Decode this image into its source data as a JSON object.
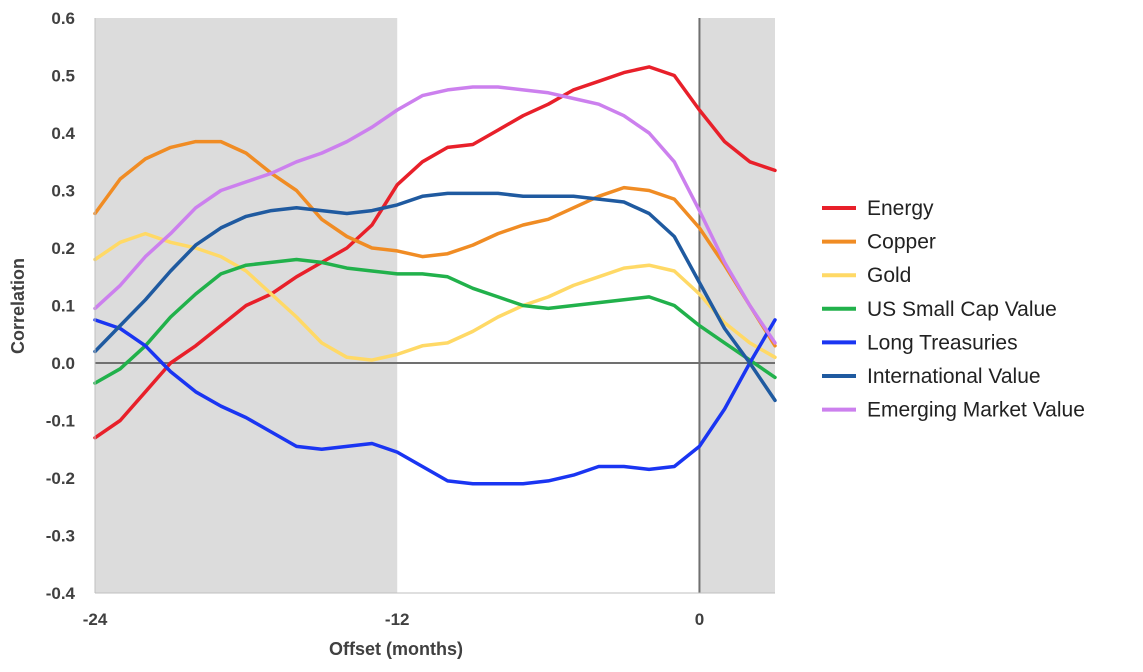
{
  "chart_data": {
    "type": "line",
    "title": "",
    "xlabel": "Offset (months)",
    "ylabel": "Correlation",
    "xlim": [
      -24,
      3
    ],
    "ylim": [
      -0.4,
      0.6
    ],
    "x_ticks": [
      {
        "value": -24,
        "label": "-24"
      },
      {
        "value": -12,
        "label": "-12"
      },
      {
        "value": 0,
        "label": "0"
      }
    ],
    "y_ticks": [
      {
        "value": 0.6,
        "label": "0.6"
      },
      {
        "value": 0.5,
        "label": "0.5"
      },
      {
        "value": 0.4,
        "label": "0.4"
      },
      {
        "value": 0.3,
        "label": "0.3"
      },
      {
        "value": 0.2,
        "label": "0.2"
      },
      {
        "value": 0.1,
        "label": "0.1"
      },
      {
        "value": 0.0,
        "label": "0.0"
      },
      {
        "value": -0.1,
        "label": "-0.1"
      },
      {
        "value": -0.2,
        "label": "-0.2"
      },
      {
        "value": -0.3,
        "label": "-0.3"
      },
      {
        "value": -0.4,
        "label": "-0.4"
      }
    ],
    "shaded_regions": [
      {
        "x_from": -24,
        "x_to": -12,
        "color": "#dcdcdc"
      },
      {
        "x_from": 0,
        "x_to": 3,
        "color": "#dcdcdc"
      }
    ],
    "reference_lines": {
      "horizontal_y": 0,
      "vertical_x": 0
    },
    "grid": false,
    "legend_position": "right",
    "x": [
      -24,
      -23,
      -22,
      -21,
      -20,
      -19,
      -18,
      -17,
      -16,
      -15,
      -14,
      -13,
      -12,
      -11,
      -10,
      -9,
      -8,
      -7,
      -6,
      -5,
      -4,
      -3,
      -2,
      -1,
      0,
      1,
      2,
      3
    ],
    "series": [
      {
        "name": "Energy",
        "color": "#e8202a",
        "values": [
          -0.13,
          -0.1,
          -0.05,
          0.0,
          0.03,
          0.065,
          0.1,
          0.12,
          0.15,
          0.175,
          0.2,
          0.24,
          0.31,
          0.35,
          0.375,
          0.38,
          0.405,
          0.43,
          0.45,
          0.475,
          0.49,
          0.505,
          0.515,
          0.5,
          0.44,
          0.385,
          0.35,
          0.335
        ]
      },
      {
        "name": "Copper",
        "color": "#f08c24",
        "values": [
          0.26,
          0.32,
          0.355,
          0.375,
          0.385,
          0.385,
          0.365,
          0.33,
          0.3,
          0.25,
          0.22,
          0.2,
          0.195,
          0.185,
          0.19,
          0.205,
          0.225,
          0.24,
          0.25,
          0.27,
          0.29,
          0.305,
          0.3,
          0.285,
          0.235,
          0.17,
          0.1,
          0.03
        ]
      },
      {
        "name": "Gold",
        "color": "#ffd966",
        "values": [
          0.18,
          0.21,
          0.225,
          0.21,
          0.2,
          0.185,
          0.16,
          0.12,
          0.08,
          0.035,
          0.01,
          0.005,
          0.015,
          0.03,
          0.035,
          0.055,
          0.08,
          0.1,
          0.115,
          0.135,
          0.15,
          0.165,
          0.17,
          0.16,
          0.12,
          0.07,
          0.035,
          0.01
        ]
      },
      {
        "name": "US Small Cap Value",
        "color": "#21b14b",
        "values": [
          -0.035,
          -0.01,
          0.03,
          0.08,
          0.12,
          0.155,
          0.17,
          0.175,
          0.18,
          0.175,
          0.165,
          0.16,
          0.155,
          0.155,
          0.15,
          0.13,
          0.115,
          0.1,
          0.095,
          0.1,
          0.105,
          0.11,
          0.115,
          0.1,
          0.065,
          0.035,
          0.005,
          -0.025
        ]
      },
      {
        "name": "Long Treasuries",
        "color": "#1a35f2",
        "values": [
          0.075,
          0.06,
          0.03,
          -0.015,
          -0.05,
          -0.075,
          -0.095,
          -0.12,
          -0.145,
          -0.15,
          -0.145,
          -0.14,
          -0.155,
          -0.18,
          -0.205,
          -0.21,
          -0.21,
          -0.21,
          -0.205,
          -0.195,
          -0.18,
          -0.18,
          -0.185,
          -0.18,
          -0.145,
          -0.08,
          0.0,
          0.075
        ]
      },
      {
        "name": "International Value",
        "color": "#1f5aa0",
        "values": [
          0.02,
          0.065,
          0.11,
          0.16,
          0.205,
          0.235,
          0.255,
          0.265,
          0.27,
          0.265,
          0.26,
          0.265,
          0.275,
          0.29,
          0.295,
          0.295,
          0.295,
          0.29,
          0.29,
          0.29,
          0.285,
          0.28,
          0.26,
          0.22,
          0.14,
          0.06,
          0.0,
          -0.065
        ]
      },
      {
        "name": "Emerging Market Value",
        "color": "#cc80ee",
        "values": [
          0.095,
          0.135,
          0.185,
          0.225,
          0.27,
          0.3,
          0.315,
          0.33,
          0.35,
          0.365,
          0.385,
          0.41,
          0.44,
          0.465,
          0.475,
          0.48,
          0.48,
          0.475,
          0.47,
          0.46,
          0.45,
          0.43,
          0.4,
          0.35,
          0.265,
          0.175,
          0.1,
          0.035
        ]
      }
    ]
  }
}
